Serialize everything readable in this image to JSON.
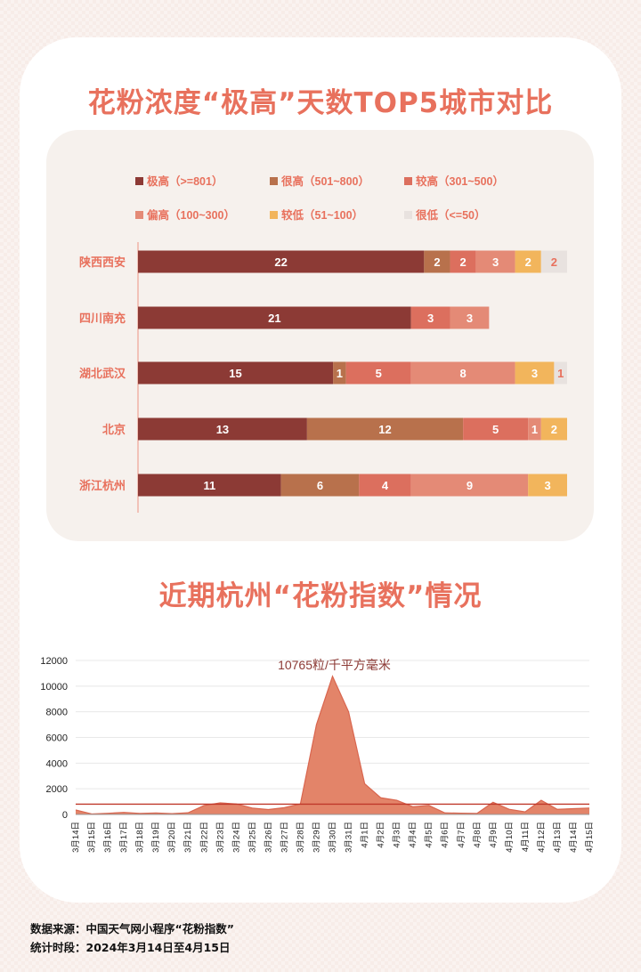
{
  "title_bar": "花粉浓度“极高”天数TOP5城市对比",
  "title_area": "近期杭州“花粉指数”情况",
  "footer": {
    "source": "数据来源：中国天气网小程序“花粉指数”",
    "period": "统计时段：2024年3月14日至4月15日"
  },
  "colors": {
    "background": "#f7ece8",
    "card": "#ffffff",
    "panel": "#f6f1ed",
    "title": "#e8715d",
    "area_fill": "#e38469",
    "area_stroke": "#d9664f",
    "reference_line": "#c0392b"
  },
  "chart_data": [
    {
      "type": "bar",
      "orientation": "horizontal",
      "stacked": true,
      "title": "花粉浓度“极高”天数TOP5城市对比",
      "categories": [
        "陕西西安",
        "四川南充",
        "湖北武汉",
        "北京",
        "浙江杭州"
      ],
      "legend_position": "top",
      "series": [
        {
          "name": "极高（>=801）",
          "color": "#8c3a35",
          "values": [
            22,
            21,
            15,
            13,
            11
          ]
        },
        {
          "name": "很高（501~800）",
          "color": "#b8714c",
          "values": [
            2,
            0,
            1,
            12,
            6
          ]
        },
        {
          "name": "较高（301~500）",
          "color": "#dc6f5e",
          "values": [
            2,
            3,
            5,
            5,
            4
          ]
        },
        {
          "name": "偏高（100~300）",
          "color": "#e48a76",
          "values": [
            3,
            3,
            8,
            1,
            9
          ]
        },
        {
          "name": "较低（51~100）",
          "color": "#f2b55c",
          "values": [
            2,
            0,
            3,
            2,
            3
          ]
        },
        {
          "name": "很低（<=50）",
          "color": "#e8e2df",
          "values": [
            2,
            0,
            1,
            0,
            0
          ]
        }
      ]
    },
    {
      "type": "area",
      "title": "近期杭州“花粉指数”情况",
      "x": [
        "3月14日",
        "3月15日",
        "3月16日",
        "3月17日",
        "3月18日",
        "3月19日",
        "3月20日",
        "3月21日",
        "3月22日",
        "3月23日",
        "3月24日",
        "3月25日",
        "3月26日",
        "3月27日",
        "3月28日",
        "3月29日",
        "3月30日",
        "3月31日",
        "4月1日",
        "4月2日",
        "4月3日",
        "4月4日",
        "4月5日",
        "4月6日",
        "4月7日",
        "4月8日",
        "4月9日",
        "4月10日",
        "4月11日",
        "4月12日",
        "4月13日",
        "4月14日",
        "4月15日"
      ],
      "y": [
        350,
        40,
        90,
        160,
        80,
        110,
        60,
        130,
        700,
        900,
        820,
        500,
        380,
        530,
        820,
        7000,
        10765,
        8000,
        2400,
        1300,
        1100,
        600,
        700,
        120,
        100,
        80,
        950,
        400,
        200,
        1100,
        400,
        450,
        500
      ],
      "ylim": [
        0,
        12000
      ],
      "yticks": [
        0,
        2000,
        4000,
        6000,
        8000,
        10000,
        12000
      ],
      "grid": true,
      "reference_line": 801,
      "annotation": "10765粒/千平方毫米"
    }
  ]
}
